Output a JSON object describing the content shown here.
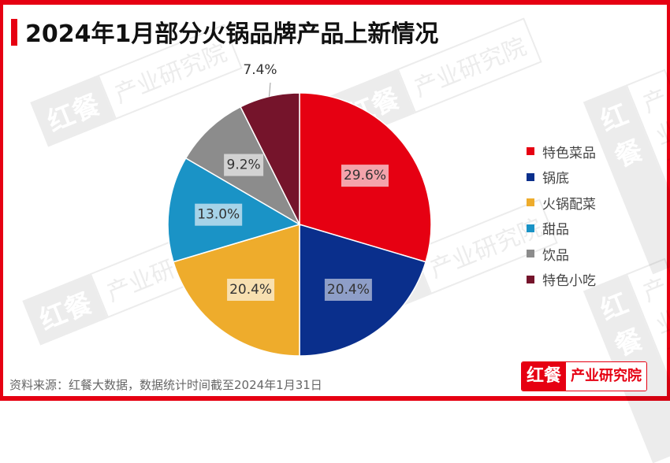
{
  "title": "2024年1月部分火锅品牌产品上新情况",
  "watermark": {
    "brand": "红餐",
    "text": "产业研究院"
  },
  "chart_data": {
    "type": "pie",
    "title": "2024年1月部分火锅品牌产品上新情况",
    "start_angle": "12 o'clock, clockwise",
    "categories": [
      "特色菜品",
      "锅底",
      "火锅配菜",
      "甜品",
      "饮品",
      "特色小吃"
    ],
    "values": [
      29.6,
      20.4,
      20.4,
      13.0,
      9.2,
      7.4
    ],
    "labels": [
      "29.6%",
      "20.4%",
      "20.4%",
      "13.0%",
      "9.2%",
      "7.4%"
    ],
    "colors": [
      "#e60012",
      "#0a2f8c",
      "#eeac2c",
      "#1a93c6",
      "#8c8c8c",
      "#75142b"
    ],
    "legend_position": "right",
    "unit": "%"
  },
  "legend": [
    {
      "label": "特色菜品",
      "color": "#e60012"
    },
    {
      "label": "锅底",
      "color": "#0a2f8c"
    },
    {
      "label": "火锅配菜",
      "color": "#eeac2c"
    },
    {
      "label": "甜品",
      "color": "#1a93c6"
    },
    {
      "label": "饮品",
      "color": "#8c8c8c"
    },
    {
      "label": "特色小吃",
      "color": "#75142b"
    }
  ],
  "footer": {
    "source": "资料来源：红餐大数据，数据统计时间截至2024年1月31日",
    "logo_brand": "红餐",
    "logo_text": "产业研究院"
  }
}
